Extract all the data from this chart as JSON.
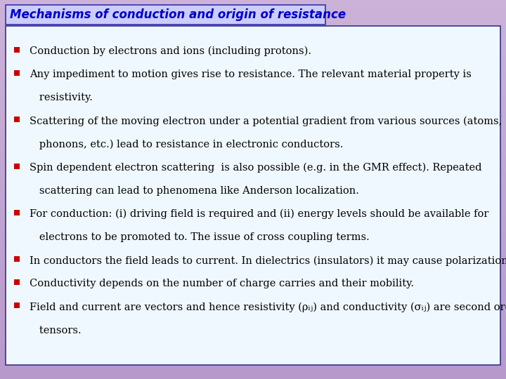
{
  "title": "Mechanisms of conduction and origin of resistance",
  "title_color": "#0000cc",
  "title_bg": "#ccccff",
  "title_border": "#3333aa",
  "box_bg": "#f0f8ff",
  "box_border": "#333388",
  "bullet_color": "#cc0000",
  "text_color": "#000000",
  "font_size": 10.5,
  "title_font_size": 12,
  "items": [
    "Conduction by electrons and ions (including protons).",
    "Any impediment to motion gives rise to resistance. The relevant material property is\n   resistivity.",
    "Scattering of the moving electron under a potential gradient from various sources (atoms,\n   phonons, etc.) lead to resistance in electronic conductors.",
    "Spin dependent electron scattering  is also possible (e.g. in the GMR effect). Repeated\n   scattering can lead to phenomena like Anderson localization.",
    "For conduction: (i) driving field is required and (ii) energy levels should be available for\n   electrons to be promoted to. The issue of cross coupling terms.",
    "In conductors the field leads to current. In dielectrics (insulators) it may cause polarization.",
    "Conductivity depends on the number of charge carries and their mobility.",
    "Field and current are vectors and hence resistivity (ρᵢⱼ) and conductivity (σᵢⱼ) are second order\n   tensors."
  ]
}
